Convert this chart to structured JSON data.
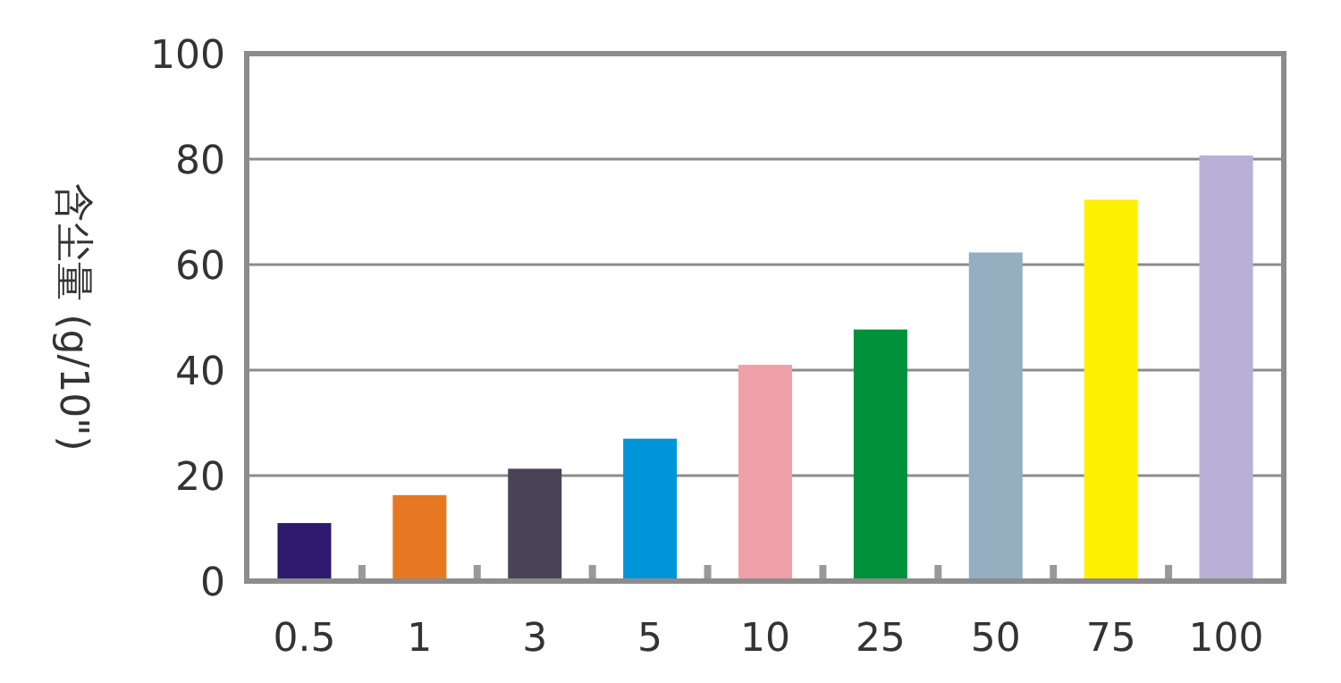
{
  "chart_data": {
    "type": "bar",
    "ylabel": "含尘量 (g/10\")",
    "categories": [
      "0.5",
      "1",
      "3",
      "5",
      "10",
      "25",
      "50",
      "75",
      "100"
    ],
    "values": [
      11,
      16.3,
      21.3,
      27,
      41,
      47.7,
      62.3,
      72.3,
      80.7
    ],
    "colors": [
      "#2e1a6e",
      "#e87722",
      "#4a4358",
      "#0095d9",
      "#f0a0a8",
      "#00913a",
      "#95afc0",
      "#fff100",
      "#b9b0d8"
    ],
    "ylim": [
      0,
      100
    ],
    "yticks": [
      0,
      20,
      40,
      60,
      80,
      100
    ],
    "grid": "y"
  }
}
